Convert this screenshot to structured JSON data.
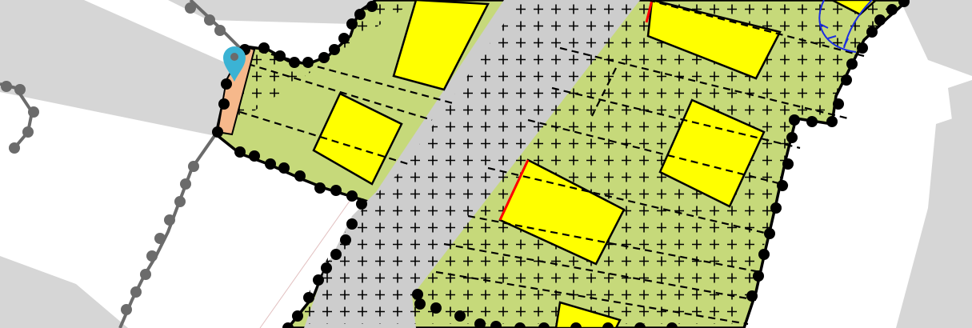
{
  "map": {
    "colors": {
      "background": "#ffffff",
      "building": "#d6d6d6",
      "road": "#cdcdcd",
      "parcel": "#c6d97a",
      "building_plot": "#ffff00",
      "boundary": "#000000",
      "vertex": "#000000",
      "cross": "#000000",
      "edit_edge": "#ff0000",
      "selection_fill": "#f6b88b",
      "marker": "#3bb3d4",
      "line_feature": "#6b6b6b",
      "pipe": "#1c2ee0"
    },
    "marker_icon": "map-pin-icon",
    "layers": [
      "background-buildings",
      "road-strip",
      "parcel-zone",
      "building-plots",
      "lot-dividers",
      "vertex-handles",
      "hatch-crosses",
      "line-feature",
      "location-marker"
    ]
  }
}
